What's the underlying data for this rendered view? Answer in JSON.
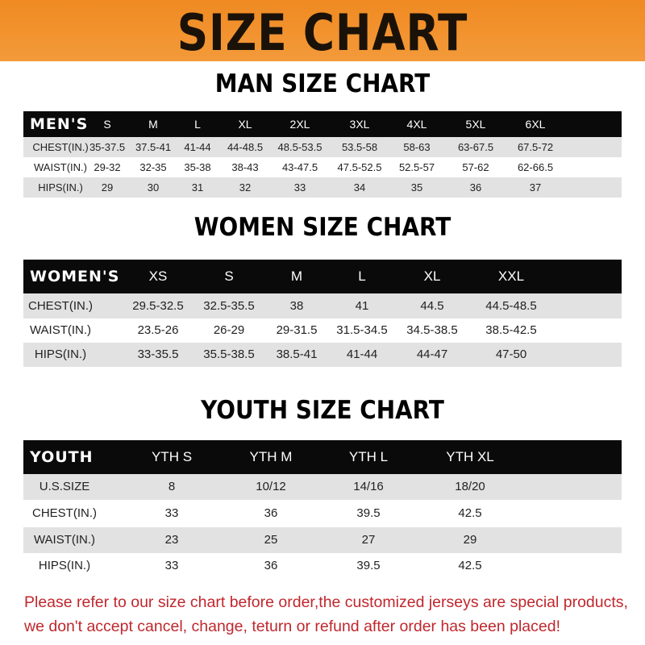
{
  "banner": {
    "title": "SIZE CHART"
  },
  "men": {
    "title": "MAN SIZE CHART",
    "header": [
      "MEN'S",
      "S",
      "M",
      "L",
      "XL",
      "2XL",
      "3XL",
      "4XL",
      "5XL",
      "6XL"
    ],
    "rows": [
      [
        "CHEST(IN.)",
        "35-37.5",
        "37.5-41",
        "41-44",
        "44-48.5",
        "48.5-53.5",
        "53.5-58",
        "58-63",
        "63-67.5",
        "67.5-72"
      ],
      [
        "WAIST(IN.)",
        "29-32",
        "32-35",
        "35-38",
        "38-43",
        "43-47.5",
        "47.5-52.5",
        "52.5-57",
        "57-62",
        "62-66.5"
      ],
      [
        "HIPS(IN.)",
        "29",
        "30",
        "31",
        "32",
        "33",
        "34",
        "35",
        "36",
        "37"
      ]
    ]
  },
  "women": {
    "title": "WOMEN SIZE CHART",
    "header": [
      "WOMEN'S",
      "XS",
      "S",
      "M",
      "L",
      "XL",
      "XXL"
    ],
    "rows": [
      [
        "CHEST(IN.)",
        "29.5-32.5",
        "32.5-35.5",
        "38",
        "41",
        "44.5",
        "44.5-48.5"
      ],
      [
        "WAIST(IN.)",
        "23.5-26",
        "26-29",
        "29-31.5",
        "31.5-34.5",
        "34.5-38.5",
        "38.5-42.5"
      ],
      [
        "HIPS(IN.)",
        "33-35.5",
        "35.5-38.5",
        "38.5-41",
        "41-44",
        "44-47",
        "47-50"
      ]
    ]
  },
  "youth": {
    "title": "YOUTH SIZE CHART",
    "header": [
      "YOUTH",
      "YTH S",
      "YTH M",
      "YTH L",
      "YTH XL"
    ],
    "rows": [
      [
        "U.S.SIZE",
        "8",
        "10/12",
        "14/16",
        "18/20"
      ],
      [
        "CHEST(IN.)",
        "33",
        "36",
        "39.5",
        "42.5"
      ],
      [
        "WAIST(IN.)",
        "23",
        "25",
        "27",
        "29"
      ],
      [
        "HIPS(IN.)",
        "33",
        "36",
        "39.5",
        "42.5"
      ]
    ]
  },
  "footer": {
    "line1": "Please refer to our size chart before order,the customized jerseys are special products,",
    "line2": "we don't accept cancel, change, teturn or refund after order has been placed!"
  },
  "colors": {
    "banner": "#f08a22",
    "header_row": "#0a0a0a",
    "alt_row": "#e2e2e2",
    "notice": "#c0272d"
  }
}
